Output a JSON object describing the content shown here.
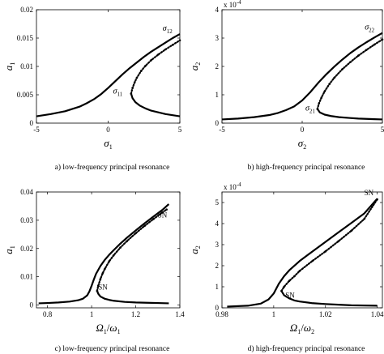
{
  "chart_data": [
    {
      "type": "line",
      "caption": "a) low-frequency principal resonance",
      "xlabel": {
        "base": "σ",
        "sub": "1"
      },
      "ylabel": {
        "base": "a",
        "sub": "1"
      },
      "xlim": [
        -5,
        5
      ],
      "ylim": [
        0,
        0.02
      ],
      "xticks": [
        -5,
        0,
        5
      ],
      "xtick_labels": [
        "-5",
        "0",
        "5"
      ],
      "yticks": [
        0,
        0.005,
        0.01,
        0.015,
        0.02
      ],
      "ytick_labels": [
        "0",
        "0.005",
        "0.01",
        "0.015",
        "0.02"
      ],
      "exponent_label": "",
      "series": [
        {
          "style": "solid",
          "x": [
            -5,
            -4,
            -3,
            -2,
            -1.5,
            -1,
            -0.5,
            0,
            0.5,
            1,
            1.5,
            2,
            2.5,
            3,
            3.5,
            4,
            4.5,
            5
          ],
          "y": [
            0.0012,
            0.0016,
            0.0021,
            0.0029,
            0.0035,
            0.0042,
            0.0051,
            0.0062,
            0.0074,
            0.0086,
            0.0097,
            0.0107,
            0.0117,
            0.0126,
            0.0134,
            0.0142,
            0.015,
            0.0157
          ]
        },
        {
          "style": "dotted",
          "x": [
            1.6,
            1.7,
            1.85,
            2.0,
            2.3,
            2.6,
            3.0,
            3.5,
            4.0,
            4.5,
            5.0
          ],
          "y": [
            0.0052,
            0.0062,
            0.0072,
            0.008,
            0.0092,
            0.0101,
            0.0111,
            0.0121,
            0.013,
            0.0138,
            0.0146
          ]
        },
        {
          "style": "solid",
          "x": [
            1.6,
            1.7,
            1.9,
            2.2,
            2.6,
            3.0,
            3.5,
            4.0,
            4.5,
            5.0
          ],
          "y": [
            0.0052,
            0.0044,
            0.0037,
            0.0031,
            0.0026,
            0.0022,
            0.0019,
            0.0016,
            0.0014,
            0.0012
          ]
        }
      ],
      "annotations": [
        {
          "base": "σ",
          "sub": "11",
          "x": 1.0,
          "y": 0.0052,
          "anchor": "end"
        },
        {
          "base": "σ",
          "sub": "12",
          "x": 3.8,
          "y": 0.0163,
          "anchor": "start"
        }
      ]
    },
    {
      "type": "line",
      "caption": "b) high-frequency principal resonance",
      "xlabel": {
        "base": "σ",
        "sub": "2"
      },
      "ylabel": {
        "base": "a",
        "sub": "2"
      },
      "xlim": [
        -5,
        5
      ],
      "ylim": [
        0,
        0.0004
      ],
      "xticks": [
        -5,
        0,
        5
      ],
      "xtick_labels": [
        "-5",
        "0",
        "5"
      ],
      "yticks": [
        0,
        0.0001,
        0.0002,
        0.0003,
        0.0004
      ],
      "ytick_labels": [
        "0",
        "1",
        "2",
        "3",
        "4"
      ],
      "exponent_label": "x 10",
      "exponent_power": "-4",
      "series": [
        {
          "style": "solid",
          "x": [
            -5,
            -4,
            -3,
            -2,
            -1.5,
            -1,
            -0.5,
            0,
            0.5,
            1,
            1.5,
            2,
            2.5,
            3,
            3.5,
            4,
            4.5,
            5
          ],
          "y": [
            1.3e-05,
            1.6e-05,
            2.1e-05,
            2.9e-05,
            3.6e-05,
            4.6e-05,
            5.9e-05,
            8e-05,
            0.000109,
            0.000142,
            0.000172,
            0.000199,
            0.000224,
            0.000247,
            0.000267,
            0.000285,
            0.000302,
            0.000318
          ]
        },
        {
          "style": "dotted",
          "x": [
            0.95,
            1.05,
            1.2,
            1.4,
            1.7,
            2.0,
            2.5,
            3.0,
            3.5,
            4.0,
            4.5,
            5.0
          ],
          "y": [
            5e-05,
            7e-05,
            9e-05,
            0.000112,
            0.000138,
            0.00016,
            0.00019,
            0.000215,
            0.000238,
            0.000258,
            0.000277,
            0.000295
          ]
        },
        {
          "style": "solid",
          "x": [
            0.95,
            1.1,
            1.4,
            1.8,
            2.3,
            3.0,
            3.5,
            4.0,
            4.5,
            5.0
          ],
          "y": [
            5e-05,
            3.8e-05,
            3e-05,
            2.5e-05,
            2.1e-05,
            1.8e-05,
            1.6e-05,
            1.5e-05,
            1.4e-05,
            1.3e-05
          ]
        }
      ],
      "annotations": [
        {
          "base": "σ",
          "sub": "21",
          "x": 0.2,
          "y": 4.5e-05,
          "anchor": "start"
        },
        {
          "base": "σ",
          "sub": "22",
          "x": 3.9,
          "y": 0.00033,
          "anchor": "start"
        }
      ]
    },
    {
      "type": "line",
      "caption": "c) low-frequency principal resonance",
      "xlabel": {
        "base": "Ω",
        "sub": "1",
        "slash": "/",
        "base2": "ω",
        "sub2": "1"
      },
      "ylabel": {
        "base": "a",
        "sub": "1"
      },
      "xlim": [
        0.75,
        1.4
      ],
      "ylim": [
        -0.001,
        0.04
      ],
      "xticks": [
        0.8,
        1.0,
        1.2,
        1.4
      ],
      "xtick_labels": [
        "0.8",
        "1",
        "1.2",
        "1.4"
      ],
      "yticks": [
        0,
        0.01,
        0.02,
        0.03,
        0.04
      ],
      "ytick_labels": [
        "0",
        "0.01",
        "0.02",
        "0.03",
        "0.04"
      ],
      "exponent_label": "",
      "series": [
        {
          "style": "solid",
          "x": [
            0.76,
            0.8,
            0.85,
            0.9,
            0.94,
            0.96,
            0.98,
            0.99,
            1.0,
            1.01,
            1.02,
            1.04,
            1.06,
            1.08,
            1.1,
            1.13,
            1.16,
            1.2,
            1.24,
            1.28,
            1.32,
            1.35
          ],
          "y": [
            0.0006,
            0.0007,
            0.0009,
            0.0012,
            0.0017,
            0.0022,
            0.0034,
            0.0048,
            0.0068,
            0.009,
            0.011,
            0.0138,
            0.016,
            0.0178,
            0.0194,
            0.0217,
            0.0238,
            0.0264,
            0.0289,
            0.0313,
            0.0336,
            0.0357
          ]
        },
        {
          "style": "dotted",
          "x": [
            1.025,
            1.03,
            1.04,
            1.05,
            1.06,
            1.08,
            1.1,
            1.13,
            1.16,
            1.2,
            1.24,
            1.28,
            1.32,
            1.34
          ],
          "y": [
            0.005,
            0.0068,
            0.0092,
            0.0112,
            0.0128,
            0.0155,
            0.0176,
            0.0203,
            0.0226,
            0.0254,
            0.028,
            0.0304,
            0.0327,
            0.0338
          ]
        },
        {
          "style": "solid",
          "x": [
            1.025,
            1.03,
            1.04,
            1.06,
            1.08,
            1.1,
            1.15,
            1.2,
            1.25,
            1.3,
            1.35
          ],
          "y": [
            0.005,
            0.004,
            0.003,
            0.0022,
            0.0018,
            0.0015,
            0.0011,
            0.0009,
            0.0008,
            0.0007,
            0.0006
          ]
        }
      ],
      "annotations": [
        {
          "text": "SN",
          "x": 1.3,
          "y": 0.031,
          "anchor": "start"
        },
        {
          "text": "SN",
          "x": 1.03,
          "y": 0.0055,
          "anchor": "start"
        }
      ]
    },
    {
      "type": "line",
      "caption": "d) high-frequency principal resonance",
      "xlabel": {
        "base": "Ω",
        "sub": "1",
        "slash": "/",
        "base2": "ω",
        "sub2": "2"
      },
      "ylabel": {
        "base": "a",
        "sub": "2"
      },
      "xlim": [
        0.98,
        1.042
      ],
      "ylim": [
        0,
        0.00055
      ],
      "xticks": [
        0.98,
        1.0,
        1.02,
        1.04
      ],
      "xtick_labels": [
        "0.98",
        "1",
        "1.02",
        "1.04"
      ],
      "yticks": [
        0,
        0.0001,
        0.0002,
        0.0003,
        0.0004,
        0.0005
      ],
      "ytick_labels": [
        "0",
        "1",
        "2",
        "3",
        "4",
        "5"
      ],
      "exponent_label": "x 10",
      "exponent_power": "-4",
      "series": [
        {
          "style": "solid",
          "x": [
            0.982,
            0.99,
            0.995,
            0.998,
            1.0,
            1.002,
            1.004,
            1.006,
            1.01,
            1.015,
            1.02,
            1.025,
            1.03,
            1.035,
            1.04
          ],
          "y": [
            6e-06,
            1e-05,
            2e-05,
            4e-05,
            6.8e-05,
            0.000115,
            0.00015,
            0.000178,
            0.000222,
            0.000268,
            0.000313,
            0.000358,
            0.000403,
            0.000448,
            0.000518
          ]
        },
        {
          "style": "dotted",
          "x": [
            1.003,
            1.004,
            1.006,
            1.008,
            1.01,
            1.015,
            1.02,
            1.025,
            1.03,
            1.035,
            1.04
          ],
          "y": [
            8e-05,
            0.0001,
            0.000128,
            0.00015,
            0.000175,
            0.000223,
            0.000268,
            0.000316,
            0.000366,
            0.000422,
            0.000515
          ]
        },
        {
          "style": "solid",
          "x": [
            1.003,
            1.004,
            1.006,
            1.008,
            1.01,
            1.015,
            1.02,
            1.025,
            1.03,
            1.04
          ],
          "y": [
            8e-05,
            6e-05,
            4.5e-05,
            3.5e-05,
            3e-05,
            2.2e-05,
            1.8e-05,
            1.5e-05,
            1.2e-05,
            1e-05
          ]
        }
      ],
      "annotations": [
        {
          "text": "SN",
          "x": 1.035,
          "y": 0.000535,
          "anchor": "start"
        },
        {
          "text": "SN",
          "x": 1.0045,
          "y": 4.8e-05,
          "anchor": "start"
        }
      ]
    }
  ]
}
